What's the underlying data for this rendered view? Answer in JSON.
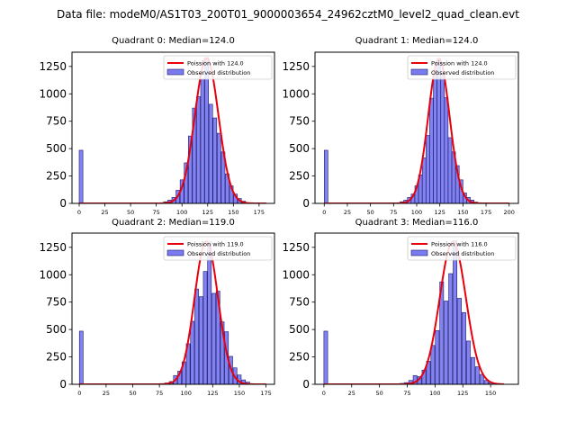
{
  "suptitle": "Data file: modeM0/AS1T03_200T01_9000003654_24962cztM0_level2_quad_clean.evt",
  "colors": {
    "bar_fill": "#7b7bf0",
    "bar_edge": "#1a1a6e",
    "poisson_line": "#e8000b",
    "axis": "#000000"
  },
  "legend_labels": {
    "observed": "Observed distribution"
  },
  "chart_data": [
    {
      "type": "bar",
      "title": "Quadrant 0: Median=124.0",
      "legend_poisson": "Poission with 124.0",
      "legend_placement": "top-right",
      "xlim": [
        -7,
        190
      ],
      "ylim": [
        0,
        1380
      ],
      "xticks": [
        0,
        25,
        50,
        75,
        100,
        125,
        150,
        175
      ],
      "yticks": [
        0,
        250,
        500,
        750,
        1000,
        1250
      ],
      "bin_width": 3.6,
      "zero_bin": {
        "x": 1.8,
        "value": 485
      },
      "bins": [
        {
          "x": 84,
          "value": 15
        },
        {
          "x": 88,
          "value": 30
        },
        {
          "x": 92,
          "value": 55
        },
        {
          "x": 96,
          "value": 120
        },
        {
          "x": 100,
          "value": 215
        },
        {
          "x": 104,
          "value": 370
        },
        {
          "x": 108,
          "value": 615
        },
        {
          "x": 112,
          "value": 870
        },
        {
          "x": 116,
          "value": 975
        },
        {
          "x": 120,
          "value": 1135
        },
        {
          "x": 124,
          "value": 1330
        },
        {
          "x": 128,
          "value": 905
        },
        {
          "x": 132,
          "value": 780
        },
        {
          "x": 136,
          "value": 640
        },
        {
          "x": 140,
          "value": 470
        },
        {
          "x": 144,
          "value": 270
        },
        {
          "x": 148,
          "value": 160
        },
        {
          "x": 152,
          "value": 85
        },
        {
          "x": 156,
          "value": 45
        },
        {
          "x": 160,
          "value": 20
        }
      ],
      "poisson": {
        "mean": 124.0,
        "amplitude": 1325,
        "sigma": 11.5,
        "x_range": [
          0,
          182
        ]
      }
    },
    {
      "type": "bar",
      "title": "Quadrant 1: Median=124.0",
      "legend_poisson": "Poission with 124.0",
      "legend_placement": "top-right",
      "xlim": [
        -10,
        210
      ],
      "ylim": [
        0,
        1380
      ],
      "xticks": [
        0,
        25,
        50,
        75,
        100,
        125,
        150,
        175,
        200
      ],
      "yticks": [
        0,
        250,
        500,
        750,
        1000,
        1250
      ],
      "bin_width": 3.9,
      "zero_bin": {
        "x": 2,
        "value": 485
      },
      "bins": [
        {
          "x": 84,
          "value": 15
        },
        {
          "x": 88,
          "value": 30
        },
        {
          "x": 92,
          "value": 55
        },
        {
          "x": 96,
          "value": 85
        },
        {
          "x": 100,
          "value": 160
        },
        {
          "x": 104,
          "value": 260
        },
        {
          "x": 108,
          "value": 415
        },
        {
          "x": 112,
          "value": 620
        },
        {
          "x": 116,
          "value": 960
        },
        {
          "x": 120,
          "value": 1180
        },
        {
          "x": 124,
          "value": 1320
        },
        {
          "x": 128,
          "value": 1180
        },
        {
          "x": 132,
          "value": 965
        },
        {
          "x": 136,
          "value": 600
        },
        {
          "x": 140,
          "value": 470
        },
        {
          "x": 144,
          "value": 345
        },
        {
          "x": 148,
          "value": 215
        },
        {
          "x": 152,
          "value": 95
        },
        {
          "x": 156,
          "value": 55
        },
        {
          "x": 160,
          "value": 30
        },
        {
          "x": 164,
          "value": 12
        }
      ],
      "poisson": {
        "mean": 124.0,
        "amplitude": 1320,
        "sigma": 11.5,
        "x_range": [
          0,
          200
        ]
      }
    },
    {
      "type": "bar",
      "title": "Quadrant 2: Median=119.0",
      "legend_poisson": "Poission with 119.0",
      "legend_placement": "top-right",
      "xlim": [
        -7,
        183
      ],
      "ylim": [
        0,
        1380
      ],
      "xticks": [
        0,
        25,
        50,
        75,
        100,
        125,
        150,
        175
      ],
      "yticks": [
        0,
        250,
        500,
        750,
        1000,
        1250
      ],
      "bin_width": 3.5,
      "zero_bin": {
        "x": 1.7,
        "value": 485
      },
      "bins": [
        {
          "x": 82,
          "value": 12
        },
        {
          "x": 86,
          "value": 25
        },
        {
          "x": 90,
          "value": 80
        },
        {
          "x": 94,
          "value": 120
        },
        {
          "x": 98,
          "value": 205
        },
        {
          "x": 102,
          "value": 370
        },
        {
          "x": 106,
          "value": 575
        },
        {
          "x": 110,
          "value": 870
        },
        {
          "x": 114,
          "value": 800
        },
        {
          "x": 118,
          "value": 1030
        },
        {
          "x": 122,
          "value": 1300
        },
        {
          "x": 126,
          "value": 830
        },
        {
          "x": 130,
          "value": 850
        },
        {
          "x": 134,
          "value": 570
        },
        {
          "x": 138,
          "value": 480
        },
        {
          "x": 142,
          "value": 255
        },
        {
          "x": 146,
          "value": 150
        },
        {
          "x": 150,
          "value": 85
        },
        {
          "x": 154,
          "value": 40
        },
        {
          "x": 158,
          "value": 20
        }
      ],
      "poisson": {
        "mean": 119.0,
        "amplitude": 1305,
        "sigma": 11.0,
        "x_range": [
          0,
          175
        ]
      }
    },
    {
      "type": "bar",
      "title": "Quadrant 3: Median=116.0",
      "legend_poisson": "Poission with 116.0",
      "legend_placement": "top-right",
      "xlim": [
        -8,
        175
      ],
      "ylim": [
        0,
        1380
      ],
      "xticks": [
        0,
        25,
        50,
        75,
        100,
        125,
        150
      ],
      "yticks": [
        0,
        250,
        500,
        750,
        1000,
        1250
      ],
      "bin_width": 3.4,
      "zero_bin": {
        "x": 1.7,
        "value": 485
      },
      "bins": [
        {
          "x": 70,
          "value": 8
        },
        {
          "x": 74,
          "value": 15
        },
        {
          "x": 78,
          "value": 35
        },
        {
          "x": 82,
          "value": 80
        },
        {
          "x": 86,
          "value": 70
        },
        {
          "x": 90,
          "value": 130
        },
        {
          "x": 94,
          "value": 210
        },
        {
          "x": 98,
          "value": 355
        },
        {
          "x": 102,
          "value": 490
        },
        {
          "x": 106,
          "value": 935
        },
        {
          "x": 110,
          "value": 760
        },
        {
          "x": 114,
          "value": 1010
        },
        {
          "x": 118,
          "value": 1310
        },
        {
          "x": 122,
          "value": 785
        },
        {
          "x": 126,
          "value": 655
        },
        {
          "x": 130,
          "value": 395
        },
        {
          "x": 134,
          "value": 245
        },
        {
          "x": 138,
          "value": 160
        },
        {
          "x": 142,
          "value": 90
        },
        {
          "x": 146,
          "value": 35
        },
        {
          "x": 150,
          "value": 15
        }
      ],
      "poisson": {
        "mean": 116.0,
        "amplitude": 1300,
        "sigma": 11.8,
        "x_range": [
          0,
          162
        ]
      }
    }
  ]
}
